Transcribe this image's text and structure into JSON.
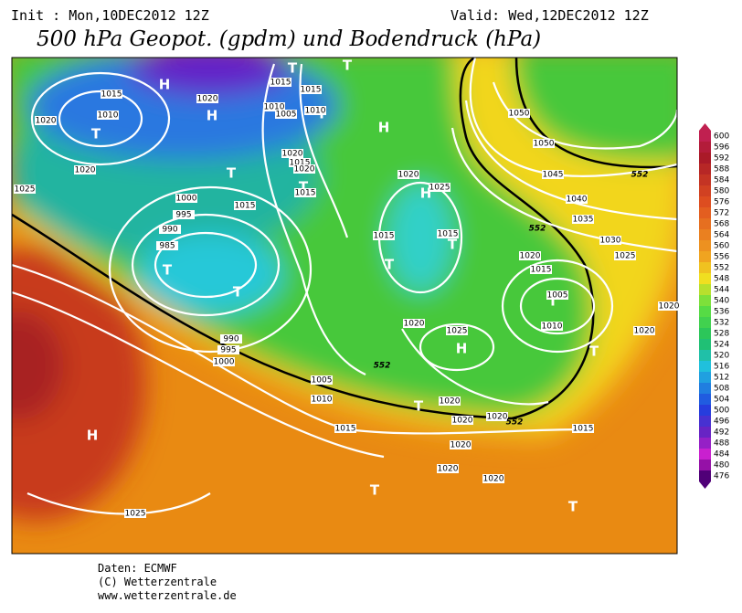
{
  "header": {
    "init": "Init : Mon,10DEC2012 12Z",
    "valid": "Valid: Wed,12DEC2012 12Z",
    "title": "500 hPa Geopot. (gpdm) und Bodendruck (hPa)"
  },
  "footer": [
    "Daten: ECMWF",
    "(C) Wetterzentrale",
    "www.wetterzentrale.de"
  ],
  "colorbar": {
    "ticks": [
      600,
      596,
      592,
      588,
      584,
      580,
      576,
      572,
      568,
      564,
      560,
      556,
      552,
      548,
      544,
      540,
      536,
      532,
      528,
      524,
      520,
      516,
      512,
      508,
      504,
      500,
      496,
      492,
      488,
      484,
      480,
      476
    ]
  },
  "map": {
    "pressure_centers": [
      "H",
      "H",
      "T",
      "T",
      "T",
      "T",
      "T",
      "T",
      "T",
      "T",
      "T",
      "T",
      "H",
      "H",
      "H",
      "T",
      "T",
      "T",
      "T",
      "T",
      "H"
    ],
    "isobar_labels": [
      "1015",
      "1010",
      "1020",
      "1020",
      "1025",
      "1020",
      "1015",
      "1015",
      "1010",
      "1005",
      "1010",
      "1020",
      "1015",
      "1020",
      "1015",
      "1015",
      "1000",
      "995",
      "990",
      "985",
      "1020",
      "1025",
      "1015",
      "1015",
      "1020",
      "1015",
      "1005",
      "1010",
      "1020",
      "1025",
      "990",
      "995",
      "1000",
      "1005",
      "1010",
      "1015",
      "1020",
      "1020",
      "1020",
      "1020",
      "1020",
      "1020",
      "1015",
      "1025",
      "1050",
      "1050",
      "1045",
      "1040",
      "1035",
      "1030",
      "1025",
      "1020",
      "1020"
    ],
    "contour_labels": [
      "552",
      "552",
      "552",
      "552"
    ]
  }
}
